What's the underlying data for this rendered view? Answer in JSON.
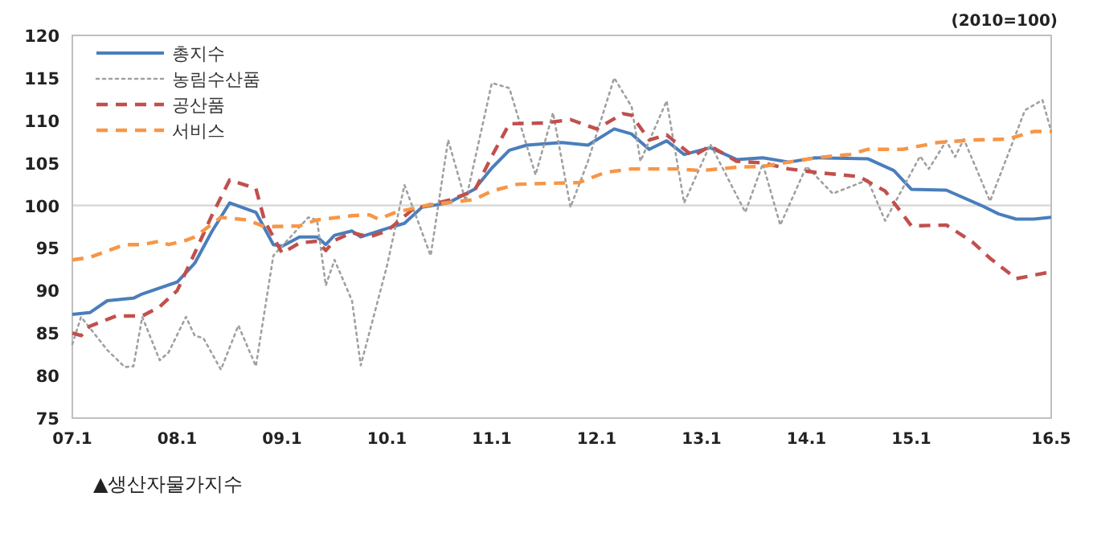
{
  "chart_data": {
    "type": "line",
    "annotations": [
      "(2010=100)",
      "▲생산자물가지수"
    ],
    "xlim": [
      "2007-01",
      "2016-05"
    ],
    "xticks": [
      {
        "value": "2007-01",
        "label": "07.1"
      },
      {
        "value": "2008-01",
        "label": "08.1"
      },
      {
        "value": "2009-01",
        "label": "09.1"
      },
      {
        "value": "2010-01",
        "label": "10.1"
      },
      {
        "value": "2011-01",
        "label": "11.1"
      },
      {
        "value": "2012-01",
        "label": "12.1"
      },
      {
        "value": "2013-01",
        "label": "13.1"
      },
      {
        "value": "2014-01",
        "label": "14.1"
      },
      {
        "value": "2015-01",
        "label": "15.1"
      },
      {
        "value": "2016-05",
        "label": "16.5"
      }
    ],
    "ylim": [
      75,
      120
    ],
    "yticks": [
      75,
      80,
      85,
      90,
      95,
      100,
      105,
      110,
      115,
      120
    ],
    "legend": "top left",
    "marker": "none",
    "ref_lines": [
      {
        "axis": "y",
        "value": 100,
        "color": "#d9d9d9"
      }
    ],
    "series": [
      {
        "name": "총지수",
        "color": "#4a7ebb",
        "line_style": "solid",
        "x": [
          "2007-01",
          "2007-03",
          "2007-05",
          "2007-08",
          "2007-09",
          "2008-01",
          "2008-03",
          "2008-05",
          "2008-07",
          "2008-10",
          "2008-12",
          "2009-01",
          "2009-03",
          "2009-05",
          "2009-06",
          "2009-07",
          "2009-09",
          "2009-10",
          "2010-01",
          "2010-03",
          "2010-05",
          "2010-08",
          "2010-11",
          "2011-01",
          "2011-03",
          "2011-05",
          "2011-09",
          "2011-12",
          "2012-03",
          "2012-05",
          "2012-07",
          "2012-09",
          "2012-11",
          "2013-02",
          "2013-05",
          "2013-08",
          "2013-11",
          "2014-02",
          "2014-08",
          "2014-11",
          "2015-01",
          "2015-05",
          "2015-09",
          "2015-11",
          "2016-01",
          "2016-03",
          "2016-05"
        ],
        "values": [
          87.2,
          87.4,
          88.8,
          89.1,
          89.6,
          91.0,
          93.2,
          97.0,
          100.3,
          99.2,
          95.4,
          95.2,
          96.3,
          96.3,
          95.4,
          96.5,
          97.0,
          96.3,
          97.3,
          97.9,
          99.8,
          100.3,
          101.9,
          104.4,
          106.5,
          107.1,
          107.4,
          107.1,
          109.0,
          108.4,
          106.6,
          107.6,
          106.0,
          106.8,
          105.4,
          105.6,
          105.1,
          105.6,
          105.5,
          104.1,
          101.9,
          101.8,
          100.0,
          99.0,
          98.4,
          98.4,
          98.6
        ]
      },
      {
        "name": "농림수산품",
        "color": "#a0a0a0",
        "line_style": "dotted",
        "x": [
          "2007-01",
          "2007-02",
          "2007-05",
          "2007-07",
          "2007-08",
          "2007-09",
          "2007-11",
          "2007-12",
          "2008-02",
          "2008-03",
          "2008-04",
          "2008-06",
          "2008-08",
          "2008-10",
          "2008-12",
          "2009-04",
          "2009-05",
          "2009-06",
          "2009-07",
          "2009-09",
          "2009-10",
          "2010-01",
          "2010-03",
          "2010-06",
          "2010-08",
          "2010-10",
          "2011-01",
          "2011-03",
          "2011-06",
          "2011-08",
          "2011-10",
          "2011-12",
          "2012-03",
          "2012-05",
          "2012-06",
          "2012-09",
          "2012-11",
          "2013-02",
          "2013-06",
          "2013-08",
          "2013-10",
          "2014-01",
          "2014-04",
          "2014-08",
          "2014-10",
          "2015-02",
          "2015-03",
          "2015-05",
          "2015-06",
          "2015-07",
          "2015-10",
          "2016-02",
          "2016-04",
          "2016-05"
        ],
        "values": [
          83.7,
          86.9,
          83.0,
          81.0,
          81.1,
          86.9,
          81.8,
          82.7,
          86.9,
          84.7,
          84.4,
          80.7,
          85.9,
          81.1,
          94.1,
          98.6,
          98.3,
          90.6,
          93.6,
          88.8,
          81.2,
          92.9,
          102.4,
          94.1,
          107.7,
          100.5,
          114.4,
          113.8,
          103.6,
          110.9,
          99.8,
          105.2,
          115.0,
          111.6,
          105.2,
          112.3,
          100.3,
          107.2,
          99.2,
          104.9,
          97.7,
          104.6,
          101.4,
          103.0,
          98.2,
          105.8,
          104.3,
          107.6,
          105.7,
          107.8,
          100.5,
          111.2,
          112.4,
          108.7
        ]
      },
      {
        "name": "공산품",
        "color": "#c0504d",
        "line_style": "dashed",
        "x": [
          "2007-01",
          "2007-02",
          "2007-03",
          "2007-06",
          "2007-09",
          "2007-11",
          "2008-01",
          "2008-03",
          "2008-05",
          "2008-07",
          "2008-10",
          "2008-11",
          "2009-01",
          "2009-03",
          "2009-05",
          "2009-06",
          "2009-07",
          "2009-09",
          "2009-11",
          "2010-01",
          "2010-04",
          "2010-08",
          "2010-11",
          "2011-01",
          "2011-03",
          "2011-07",
          "2011-10",
          "2012-01",
          "2012-04",
          "2012-05",
          "2012-07",
          "2012-09",
          "2012-12",
          "2013-02",
          "2013-05",
          "2013-08",
          "2013-11",
          "2014-02",
          "2014-05",
          "2014-07",
          "2014-10",
          "2015-01",
          "2015-05",
          "2015-08",
          "2015-10",
          "2016-01",
          "2016-05"
        ],
        "values": [
          85.0,
          84.7,
          85.8,
          87.0,
          87.0,
          88.1,
          90.0,
          94.4,
          98.9,
          103.0,
          102.0,
          98.2,
          94.4,
          95.6,
          95.8,
          94.7,
          95.9,
          96.8,
          96.3,
          97.0,
          99.6,
          100.6,
          101.7,
          105.8,
          109.6,
          109.7,
          110.1,
          109.0,
          110.8,
          110.6,
          107.7,
          108.3,
          105.8,
          107.0,
          105.2,
          105.0,
          104.3,
          103.9,
          103.6,
          103.4,
          101.7,
          97.6,
          97.7,
          95.7,
          93.8,
          91.4,
          92.2
        ]
      },
      {
        "name": "서비스",
        "color": "#f79646",
        "line_style": "dashed",
        "x": [
          "2007-01",
          "2007-03",
          "2007-07",
          "2007-09",
          "2007-11",
          "2007-12",
          "2008-02",
          "2008-03",
          "2008-06",
          "2008-09",
          "2008-11",
          "2009-03",
          "2009-05",
          "2009-09",
          "2009-11",
          "2009-12",
          "2010-02",
          "2010-06",
          "2010-11",
          "2011-01",
          "2011-04",
          "2011-11",
          "2012-02",
          "2012-05",
          "2012-10",
          "2013-01",
          "2013-05",
          "2013-08",
          "2014-02",
          "2014-06",
          "2014-08",
          "2014-12",
          "2015-04",
          "2015-08",
          "2015-12",
          "2016-03",
          "2016-05"
        ],
        "values": [
          93.6,
          93.9,
          95.4,
          95.4,
          95.8,
          95.4,
          95.9,
          96.3,
          98.6,
          98.3,
          97.5,
          97.6,
          98.3,
          98.8,
          98.9,
          98.4,
          99.2,
          100.1,
          100.7,
          101.7,
          102.5,
          102.7,
          103.9,
          104.3,
          104.3,
          104.1,
          104.5,
          104.6,
          105.6,
          106.0,
          106.6,
          106.6,
          107.4,
          107.7,
          107.8,
          108.7,
          108.7
        ]
      }
    ]
  }
}
